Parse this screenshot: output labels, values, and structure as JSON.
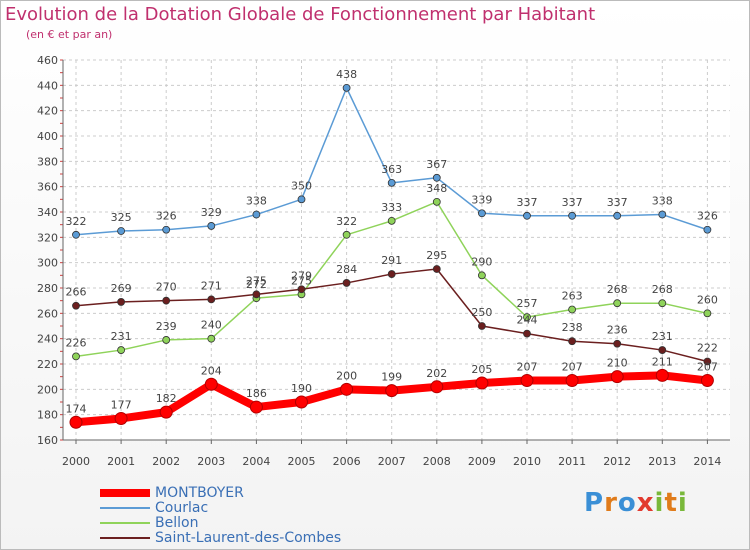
{
  "chart_data": {
    "type": "line",
    "title": "Evolution de la Dotation Globale de Fonctionnement par Habitant",
    "subtitle": "(en € et par an)",
    "xlabel": "",
    "ylabel": "",
    "x": [
      "2000",
      "2001",
      "2002",
      "2003",
      "2004",
      "2005",
      "2006",
      "2007",
      "2008",
      "2009",
      "2010",
      "2011",
      "2012",
      "2013",
      "2014"
    ],
    "ylim": [
      160,
      460
    ],
    "yticks": [
      160,
      180,
      200,
      220,
      240,
      260,
      280,
      300,
      320,
      340,
      360,
      380,
      400,
      420,
      440,
      460
    ],
    "grid": true,
    "legend_position": "bottom-left",
    "series": [
      {
        "name": "MONTBOYER",
        "color": "#ff0000",
        "values": [
          174,
          177,
          182,
          204,
          186,
          190,
          200,
          199,
          202,
          205,
          207,
          207,
          210,
          211,
          207
        ]
      },
      {
        "name": "Courlac",
        "color": "#5b9bd5",
        "values": [
          322,
          325,
          326,
          329,
          338,
          350,
          438,
          363,
          367,
          339,
          337,
          337,
          337,
          338,
          326
        ]
      },
      {
        "name": "Bellon",
        "color": "#8fd35a",
        "values": [
          226,
          231,
          239,
          240,
          272,
          275,
          322,
          333,
          348,
          290,
          257,
          263,
          268,
          268,
          260
        ]
      },
      {
        "name": "Saint-Laurent-des-Combes",
        "color": "#6b1f1f",
        "values": [
          266,
          269,
          270,
          271,
          275,
          279,
          284,
          291,
          295,
          250,
          244,
          238,
          236,
          231,
          222
        ]
      }
    ]
  },
  "logo": {
    "p": "P",
    "r": "r",
    "o": "o",
    "x": "x",
    "i": "i",
    "t": "t",
    "i2": "i"
  }
}
